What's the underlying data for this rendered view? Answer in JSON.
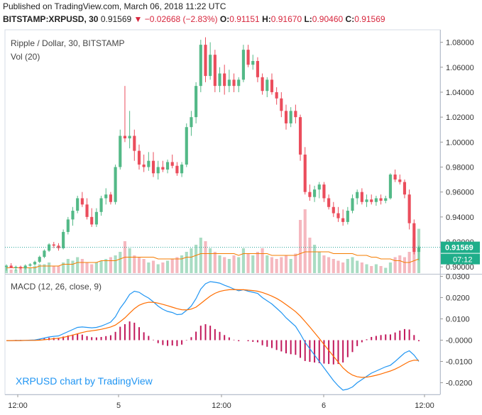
{
  "header": {
    "published": "Published on TradingView.com, March 06, 2018 11:22 UTC",
    "symbol": "BITSTAMP:XRPUSD, 30",
    "last": "0.91569",
    "change": "−0.02668 (−2.83%)",
    "o_label": "O:",
    "o": "0.91151",
    "h_label": "H:",
    "h": "0.91670",
    "l_label": "L:",
    "l": "0.90460",
    "c_label": "C:",
    "c": "0.91569"
  },
  "pane_labels": {
    "title": "Ripple / Dollar, 30, BITSTAMP",
    "vol": "Vol (20)",
    "macd": "MACD (12, 26, close, 9)"
  },
  "credit": "XRPUSD chart by TradingView",
  "price_tag": {
    "value": "0.91569",
    "countdown": "07:12"
  },
  "colors": {
    "up": "#26a69a",
    "down": "#ef5350",
    "up_candle": "#53b987",
    "down_candle": "#eb4d5c",
    "macd": "#2196f3",
    "signal": "#ff6d00",
    "hist": "#c2185b",
    "vol_up": "#a9dcc3",
    "vol_down": "#f5b8bf",
    "vol_ma": "#f57c00",
    "axis_text": "#333333",
    "grid": "#f0f3fa"
  },
  "chart_data": {
    "type": "candlestick",
    "price_axis": {
      "ticks": [
        "1.08000",
        "1.06000",
        "1.04000",
        "1.02000",
        "1.00000",
        "0.98000",
        "0.96000",
        "0.94000",
        "0.92000",
        "0.90000"
      ],
      "range": [
        0.895,
        1.09
      ]
    },
    "macd_axis": {
      "ticks": [
        "0.0300",
        "0.0200",
        "0.0100",
        "-0.0000",
        "-0.0100",
        "-0.0200"
      ],
      "range": [
        -0.0255,
        0.0305
      ]
    },
    "x_ticks": [
      "12:00",
      "5",
      "12:00",
      "6",
      "12:00"
    ],
    "candles": [
      [
        0.9,
        0.902,
        0.897,
        0.901
      ],
      [
        0.901,
        0.903,
        0.899,
        0.899
      ],
      [
        0.899,
        0.901,
        0.897,
        0.9
      ],
      [
        0.9,
        0.901,
        0.898,
        0.899
      ],
      [
        0.899,
        0.902,
        0.898,
        0.901
      ],
      [
        0.901,
        0.903,
        0.9,
        0.902
      ],
      [
        0.902,
        0.905,
        0.901,
        0.904
      ],
      [
        0.904,
        0.909,
        0.903,
        0.908
      ],
      [
        0.908,
        0.914,
        0.907,
        0.913
      ],
      [
        0.913,
        0.919,
        0.912,
        0.918
      ],
      [
        0.918,
        0.92,
        0.915,
        0.917
      ],
      [
        0.917,
        0.919,
        0.913,
        0.915
      ],
      [
        0.915,
        0.93,
        0.914,
        0.928
      ],
      [
        0.928,
        0.94,
        0.926,
        0.938
      ],
      [
        0.938,
        0.948,
        0.933,
        0.945
      ],
      [
        0.945,
        0.957,
        0.943,
        0.955
      ],
      [
        0.955,
        0.96,
        0.948,
        0.95
      ],
      [
        0.95,
        0.955,
        0.938,
        0.94
      ],
      [
        0.94,
        0.947,
        0.932,
        0.934
      ],
      [
        0.934,
        0.947,
        0.932,
        0.944
      ],
      [
        0.944,
        0.957,
        0.941,
        0.955
      ],
      [
        0.955,
        0.963,
        0.95,
        0.958
      ],
      [
        0.958,
        0.96,
        0.95,
        0.952
      ],
      [
        0.952,
        0.982,
        0.95,
        0.98
      ],
      [
        0.98,
        1.01,
        0.978,
        1.005
      ],
      [
        1.005,
        1.045,
        1.0,
        1.003
      ],
      [
        1.003,
        1.025,
        0.995,
        1.005
      ],
      [
        1.005,
        1.01,
        0.985,
        0.993
      ],
      [
        0.993,
        0.998,
        0.978,
        0.982
      ],
      [
        0.982,
        0.99,
        0.976,
        0.98
      ],
      [
        0.98,
        0.992,
        0.977,
        0.985
      ],
      [
        0.985,
        0.992,
        0.972,
        0.975
      ],
      [
        0.975,
        0.985,
        0.97,
        0.98
      ],
      [
        0.98,
        0.985,
        0.976,
        0.978
      ],
      [
        0.978,
        0.986,
        0.975,
        0.984
      ],
      [
        0.984,
        0.99,
        0.979,
        0.981
      ],
      [
        0.981,
        0.984,
        0.973,
        0.975
      ],
      [
        0.975,
        0.984,
        0.972,
        0.982
      ],
      [
        0.982,
        1.015,
        0.98,
        1.012
      ],
      [
        1.012,
        1.025,
        1.005,
        1.02
      ],
      [
        1.02,
        1.048,
        1.015,
        1.045
      ],
      [
        1.045,
        1.082,
        1.04,
        1.078
      ],
      [
        1.078,
        1.084,
        1.048,
        1.053
      ],
      [
        1.053,
        1.08,
        1.05,
        1.07
      ],
      [
        1.07,
        1.074,
        1.04,
        1.045
      ],
      [
        1.045,
        1.06,
        1.04,
        1.055
      ],
      [
        1.055,
        1.062,
        1.038,
        1.045
      ],
      [
        1.045,
        1.058,
        1.04,
        1.05
      ],
      [
        1.05,
        1.055,
        1.04,
        1.045
      ],
      [
        1.045,
        1.052,
        1.04,
        1.05
      ],
      [
        1.05,
        1.078,
        1.048,
        1.074
      ],
      [
        1.074,
        1.078,
        1.06,
        1.062
      ],
      [
        1.062,
        1.07,
        1.058,
        1.065
      ],
      [
        1.065,
        1.068,
        1.048,
        1.052
      ],
      [
        1.052,
        1.055,
        1.038,
        1.041
      ],
      [
        1.041,
        1.052,
        1.036,
        1.05
      ],
      [
        1.05,
        1.055,
        1.038,
        1.04
      ],
      [
        1.04,
        1.044,
        1.03,
        1.035
      ],
      [
        1.035,
        1.04,
        1.02,
        1.025
      ],
      [
        1.025,
        1.03,
        1.01,
        1.015
      ],
      [
        1.015,
        1.028,
        1.012,
        1.025
      ],
      [
        1.025,
        1.03,
        1.015,
        1.02
      ],
      [
        1.02,
        1.022,
        0.985,
        0.99
      ],
      [
        0.99,
        0.996,
        0.958,
        0.96
      ],
      [
        0.96,
        0.966,
        0.953,
        0.956
      ],
      [
        0.956,
        0.965,
        0.952,
        0.962
      ],
      [
        0.962,
        0.968,
        0.955,
        0.966
      ],
      [
        0.966,
        0.968,
        0.952,
        0.955
      ],
      [
        0.955,
        0.958,
        0.946,
        0.948
      ],
      [
        0.948,
        0.952,
        0.94,
        0.943
      ],
      [
        0.943,
        0.948,
        0.936,
        0.939
      ],
      [
        0.939,
        0.946,
        0.933,
        0.936
      ],
      [
        0.936,
        0.948,
        0.934,
        0.945
      ],
      [
        0.945,
        0.958,
        0.943,
        0.955
      ],
      [
        0.955,
        0.962,
        0.95,
        0.96
      ],
      [
        0.96,
        0.963,
        0.95,
        0.952
      ],
      [
        0.952,
        0.958,
        0.948,
        0.954
      ],
      [
        0.954,
        0.958,
        0.95,
        0.952
      ],
      [
        0.952,
        0.957,
        0.949,
        0.955
      ],
      [
        0.955,
        0.958,
        0.95,
        0.953
      ],
      [
        0.953,
        0.957,
        0.951,
        0.955
      ],
      [
        0.955,
        0.975,
        0.954,
        0.974
      ],
      [
        0.974,
        0.978,
        0.968,
        0.97
      ],
      [
        0.97,
        0.974,
        0.966,
        0.968
      ],
      [
        0.968,
        0.97,
        0.955,
        0.958
      ],
      [
        0.958,
        0.962,
        0.93,
        0.935
      ],
      [
        0.935,
        0.938,
        0.91,
        0.912
      ],
      [
        0.912,
        0.917,
        0.905,
        0.9157
      ]
    ],
    "volume": [
      4,
      2,
      2,
      3,
      3,
      3,
      4,
      5,
      5,
      6,
      4,
      4,
      6,
      8,
      7,
      9,
      8,
      6,
      5,
      6,
      7,
      8,
      9,
      10,
      12,
      18,
      14,
      10,
      9,
      8,
      6,
      7,
      5,
      6,
      7,
      8,
      9,
      10,
      12,
      14,
      16,
      20,
      18,
      14,
      12,
      10,
      9,
      8,
      10,
      9,
      14,
      11,
      10,
      12,
      14,
      10,
      9,
      8,
      9,
      10,
      8,
      11,
      30,
      36,
      20,
      16,
      12,
      10,
      9,
      8,
      7,
      6,
      8,
      9,
      7,
      6,
      5,
      4,
      5,
      4,
      3,
      6,
      9,
      10,
      9,
      12,
      20,
      25
    ],
    "vol_ma": [
      3,
      3,
      3,
      3,
      3,
      3,
      3,
      4,
      4,
      4,
      4,
      4,
      5,
      5,
      5,
      6,
      6,
      6,
      6,
      6,
      7,
      7,
      7,
      7,
      8,
      9,
      9,
      9,
      9,
      9,
      9,
      9,
      8,
      8,
      8,
      8,
      8,
      8,
      9,
      9,
      10,
      11,
      11,
      11,
      11,
      11,
      11,
      11,
      11,
      10,
      11,
      11,
      11,
      11,
      11,
      11,
      10,
      10,
      10,
      10,
      10,
      10,
      11,
      12,
      12,
      12,
      12,
      12,
      12,
      11,
      11,
      11,
      11,
      11,
      10,
      10,
      10,
      9,
      9,
      8,
      8,
      8,
      7,
      7,
      6,
      6,
      7,
      8
    ],
    "macd": [
      -0.0002,
      -0.0002,
      -0.0001,
      -0.0001,
      -0.0001,
      0.0,
      0.0001,
      0.0005,
      0.001,
      0.0015,
      0.0018,
      0.002,
      0.003,
      0.004,
      0.005,
      0.006,
      0.0062,
      0.006,
      0.0058,
      0.006,
      0.0066,
      0.0075,
      0.0085,
      0.011,
      0.015,
      0.018,
      0.0215,
      0.023,
      0.0225,
      0.021,
      0.0198,
      0.018,
      0.016,
      0.0145,
      0.0135,
      0.013,
      0.012,
      0.0122,
      0.014,
      0.016,
      0.0195,
      0.024,
      0.0265,
      0.0275,
      0.0272,
      0.0268,
      0.0258,
      0.025,
      0.024,
      0.0232,
      0.0237,
      0.023,
      0.0225,
      0.022,
      0.02,
      0.0185,
      0.017,
      0.015,
      0.013,
      0.0105,
      0.0085,
      0.0065,
      0.003,
      -0.001,
      -0.004,
      -0.007,
      -0.01,
      -0.013,
      -0.016,
      -0.019,
      -0.0215,
      -0.0235,
      -0.023,
      -0.022,
      -0.02,
      -0.0185,
      -0.017,
      -0.0155,
      -0.0145,
      -0.0135,
      -0.0125,
      -0.0118,
      -0.01,
      -0.008,
      -0.006,
      -0.005,
      -0.007,
      -0.01
    ],
    "signal": [
      -0.0002,
      -0.0002,
      -0.0002,
      -0.0002,
      -0.0001,
      -0.0001,
      -0.0001,
      0.0,
      0.0002,
      0.0004,
      0.0007,
      0.0009,
      0.0013,
      0.0018,
      0.0024,
      0.003,
      0.0036,
      0.0041,
      0.0044,
      0.0047,
      0.0051,
      0.0056,
      0.0062,
      0.0071,
      0.0087,
      0.0105,
      0.0127,
      0.0148,
      0.0164,
      0.0173,
      0.0178,
      0.0178,
      0.0174,
      0.0168,
      0.0162,
      0.0155,
      0.0148,
      0.0143,
      0.0142,
      0.0146,
      0.0155,
      0.0172,
      0.019,
      0.0207,
      0.022,
      0.0229,
      0.0234,
      0.0237,
      0.0238,
      0.0237,
      0.0237,
      0.0235,
      0.0233,
      0.023,
      0.0224,
      0.0216,
      0.0207,
      0.0196,
      0.0183,
      0.0167,
      0.0151,
      0.0134,
      0.0113,
      0.0088,
      0.0062,
      0.0035,
      0.0008,
      -0.002,
      -0.0048,
      -0.0076,
      -0.0103,
      -0.013,
      -0.015,
      -0.0164,
      -0.0172,
      -0.0175,
      -0.0174,
      -0.017,
      -0.0165,
      -0.0159,
      -0.0152,
      -0.0145,
      -0.0136,
      -0.0125,
      -0.0112,
      -0.01,
      -0.0094,
      -0.0095
    ]
  }
}
